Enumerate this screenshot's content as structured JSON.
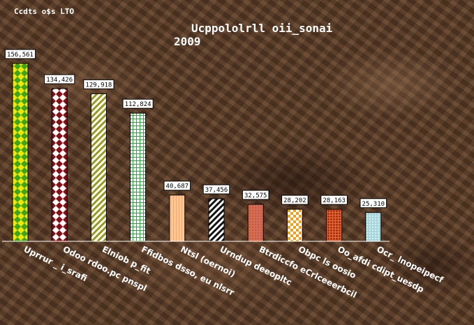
{
  "corner_text": "Ccdts o$s LTO",
  "chart_data": {
    "type": "bar",
    "title": "Ucppololrll oii_sonai",
    "subtitle": "2009",
    "categories": [
      "Uprrur _ i_srafi",
      "Odoo rdoo.pc pnspl",
      "Elniob p_fit",
      "Ffidbos dsso, eu nlsrr",
      "Ntsl (oernoi)",
      "Urndup deeopltc",
      "Btrdiccfo eCrlceeerbcil",
      "Obpc ls oosio",
      "Oo_afdi cdipt_uesdp",
      "Ocr_ lnopeipecf"
    ],
    "values": [
      156561,
      134426,
      129918,
      112824,
      40687,
      37456,
      32575,
      28202,
      28163,
      25310
    ],
    "value_labels": [
      "156,561",
      "134,426",
      "129,918",
      "112,824",
      "40,687",
      "37,456",
      "32,575",
      "28,202",
      "28,163",
      "25,310"
    ],
    "ylim": [
      0,
      156561
    ],
    "grid": false,
    "legend": "none",
    "bar_patterns": [
      {
        "name": "diamond-checker",
        "bg": "#f2e600",
        "fg": "#3aa61f"
      },
      {
        "name": "diamond-checker",
        "bg": "#ffffff",
        "fg": "#8b0d14"
      },
      {
        "name": "diagonal-stripes",
        "bg": "#ffffff",
        "fg": "#9a9a1a"
      },
      {
        "name": "grid",
        "bg": "#ffffff",
        "fg": "#2aa83a"
      },
      {
        "name": "vertical-stripes",
        "bg": "#ffc89a",
        "fg": "#f5a86a"
      },
      {
        "name": "diagonal-stripes",
        "bg": "#ffffff",
        "fg": "#111111"
      },
      {
        "name": "dots",
        "bg": "#e06a3a",
        "fg": "#6a58c8"
      },
      {
        "name": "checker",
        "bg": "#ffffff",
        "fg": "#f0a020"
      },
      {
        "name": "small-grid",
        "bg": "#b83010",
        "fg": "#e07040"
      },
      {
        "name": "dots",
        "bg": "#a8d8dc",
        "fg": "#ffffff"
      }
    ]
  }
}
